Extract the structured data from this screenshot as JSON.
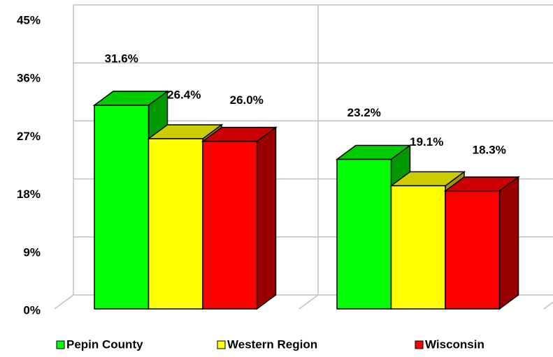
{
  "chart_data": {
    "type": "bar3d",
    "categories": [
      null,
      null
    ],
    "series": [
      {
        "name": "Pepin County",
        "color": "#00ff00",
        "values": [
          31.6,
          23.2
        ],
        "value_labels": [
          "31.6%",
          "23.2%"
        ]
      },
      {
        "name": "Western Region",
        "color": "#ffff00",
        "values": [
          26.4,
          19.1
        ],
        "value_labels": [
          "26.4%",
          "19.1%"
        ]
      },
      {
        "name": "Wisconsin",
        "color": "#ff0000",
        "values": [
          26.0,
          18.3
        ],
        "value_labels": [
          "26.0%",
          "18.3%"
        ]
      }
    ],
    "ylim": [
      0,
      45
    ],
    "yticks": [
      {
        "value": 0,
        "label": "0%"
      },
      {
        "value": 9,
        "label": "9%"
      },
      {
        "value": 18,
        "label": "18%"
      },
      {
        "value": 27,
        "label": "27%"
      },
      {
        "value": 36,
        "label": "36%"
      },
      {
        "value": 45,
        "label": "45%"
      }
    ],
    "grid": true,
    "legend": "bottom"
  }
}
